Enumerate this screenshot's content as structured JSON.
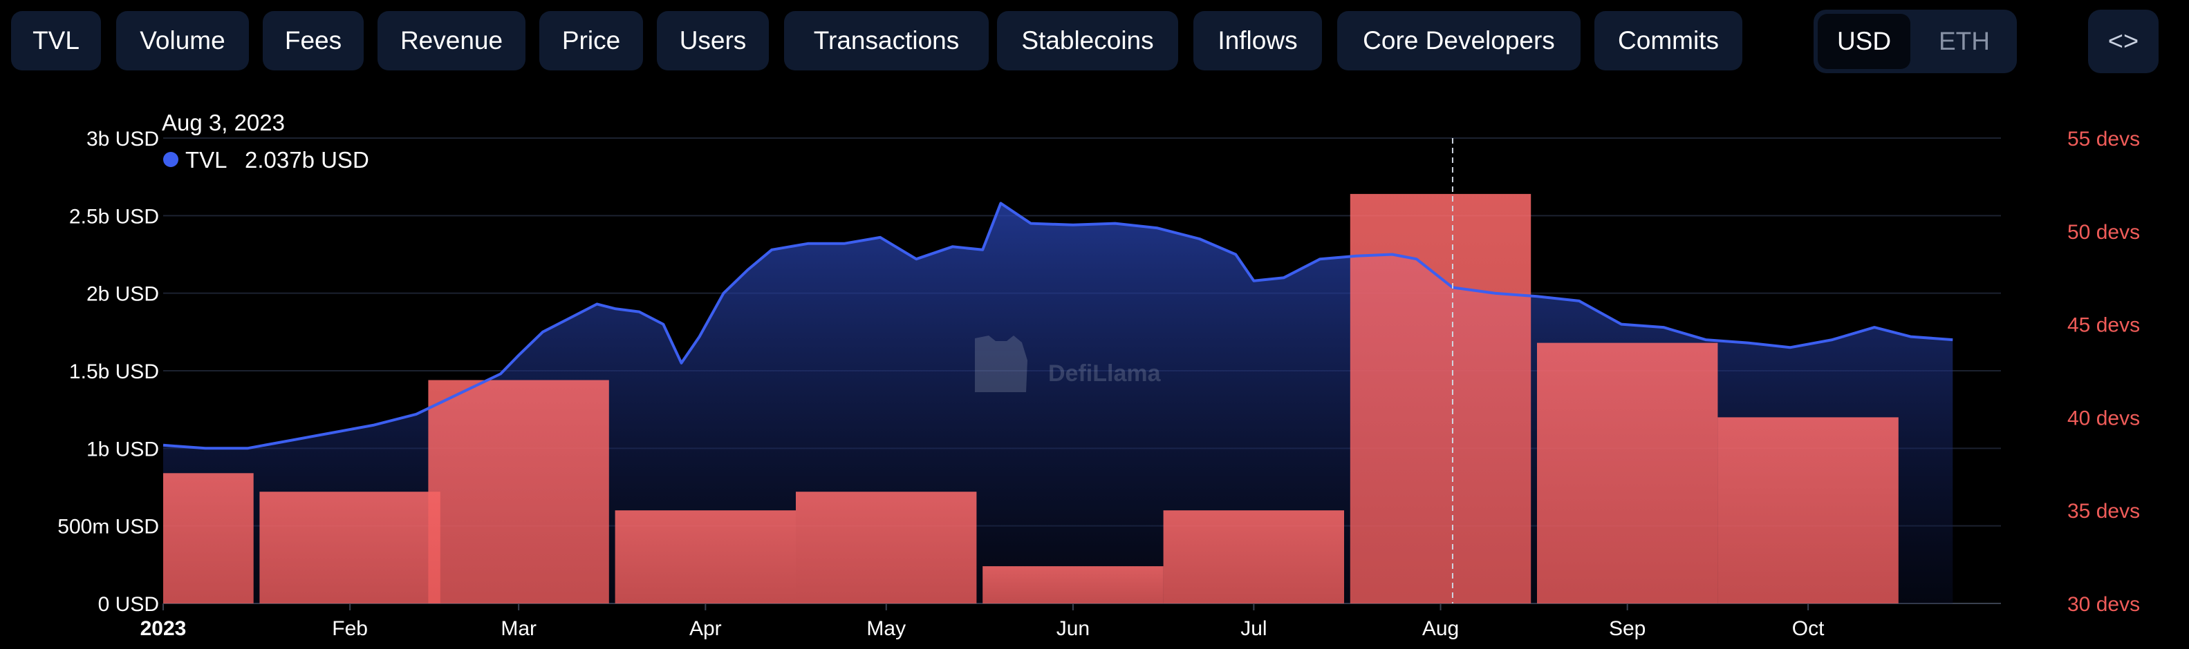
{
  "tabs": [
    {
      "label": "TVL",
      "active": true
    },
    {
      "label": "Volume",
      "active": false
    },
    {
      "label": "Fees",
      "active": false
    },
    {
      "label": "Revenue",
      "active": false
    },
    {
      "label": "Price",
      "active": false
    },
    {
      "label": "Users",
      "active": false
    },
    {
      "label": "Transactions",
      "active": false
    },
    {
      "label": "Stablecoins",
      "active": false
    },
    {
      "label": "Inflows",
      "active": false
    },
    {
      "label": "Core Developers",
      "active": true
    },
    {
      "label": "Commits",
      "active": false
    }
  ],
  "currency_toggle": {
    "options": [
      "USD",
      "ETH"
    ],
    "selected": "USD"
  },
  "embed_button": {
    "label": "<>",
    "icon": "code-icon"
  },
  "watermark": "DefiLlama",
  "colors": {
    "tvl_line": "#3c5ff0",
    "bars": "#ff6b6b",
    "right_axis": "#f05c59",
    "active_tab": "#2050a8",
    "tab_bg": "#0f1a2f"
  },
  "chart_data": {
    "type": "line+bar",
    "tooltip": {
      "date": "Aug 3, 2023",
      "series": "TVL",
      "value": "2.037b USD"
    },
    "x_tick_labels": [
      "2023",
      "Feb",
      "Mar",
      "Apr",
      "May",
      "Jun",
      "Jul",
      "Aug",
      "Sep",
      "Oct"
    ],
    "y_left": {
      "ticks": [
        "0 USD",
        "500m USD",
        "1b USD",
        "1.5b USD",
        "2b USD",
        "2.5b USD",
        "3b USD"
      ],
      "range": [
        0,
        3000000000
      ]
    },
    "y_right": {
      "ticks": [
        "30 devs",
        "35 devs",
        "40 devs",
        "45 devs",
        "50 devs",
        "55 devs"
      ],
      "range": [
        30,
        55
      ]
    },
    "grid": true,
    "series": [
      {
        "name": "TVL",
        "axis": "left",
        "unit": "USD",
        "points": [
          [
            "2023-01-01",
            1020000000.0
          ],
          [
            "2023-01-08",
            1000000000.0
          ],
          [
            "2023-01-15",
            1000000000.0
          ],
          [
            "2023-01-22",
            1050000000.0
          ],
          [
            "2023-01-29",
            1100000000.0
          ],
          [
            "2023-02-05",
            1150000000.0
          ],
          [
            "2023-02-12",
            1220000000.0
          ],
          [
            "2023-02-19",
            1350000000.0
          ],
          [
            "2023-02-26",
            1480000000.0
          ],
          [
            "2023-03-01",
            1600000000.0
          ],
          [
            "2023-03-05",
            1750000000.0
          ],
          [
            "2023-03-10",
            1850000000.0
          ],
          [
            "2023-03-14",
            1930000000.0
          ],
          [
            "2023-03-17",
            1900000000.0
          ],
          [
            "2023-03-21",
            1880000000.0
          ],
          [
            "2023-03-25",
            1800000000.0
          ],
          [
            "2023-03-28",
            1550000000.0
          ],
          [
            "2023-03-31",
            1720000000.0
          ],
          [
            "2023-04-04",
            2000000000.0
          ],
          [
            "2023-04-08",
            2150000000.0
          ],
          [
            "2023-04-12",
            2280000000.0
          ],
          [
            "2023-04-18",
            2320000000.0
          ],
          [
            "2023-04-24",
            2320000000.0
          ],
          [
            "2023-04-30",
            2360000000.0
          ],
          [
            "2023-05-06",
            2220000000.0
          ],
          [
            "2023-05-12",
            2300000000.0
          ],
          [
            "2023-05-17",
            2280000000.0
          ],
          [
            "2023-05-20",
            2580000000.0
          ],
          [
            "2023-05-25",
            2450000000.0
          ],
          [
            "2023-06-01",
            2440000000.0
          ],
          [
            "2023-06-08",
            2450000000.0
          ],
          [
            "2023-06-15",
            2420000000.0
          ],
          [
            "2023-06-22",
            2350000000.0
          ],
          [
            "2023-06-28",
            2250000000.0
          ],
          [
            "2023-07-01",
            2080000000.0
          ],
          [
            "2023-07-06",
            2100000000.0
          ],
          [
            "2023-07-12",
            2220000000.0
          ],
          [
            "2023-07-18",
            2240000000.0
          ],
          [
            "2023-07-24",
            2250000000.0
          ],
          [
            "2023-07-28",
            2220000000.0
          ],
          [
            "2023-08-03",
            2037000000.0
          ],
          [
            "2023-08-10",
            2000000000.0
          ],
          [
            "2023-08-17",
            1980000000.0
          ],
          [
            "2023-08-24",
            1950000000.0
          ],
          [
            "2023-08-31",
            1800000000.0
          ],
          [
            "2023-09-07",
            1780000000.0
          ],
          [
            "2023-09-14",
            1700000000.0
          ],
          [
            "2023-09-21",
            1680000000.0
          ],
          [
            "2023-09-28",
            1650000000.0
          ],
          [
            "2023-10-05",
            1700000000.0
          ],
          [
            "2023-10-12",
            1780000000.0
          ],
          [
            "2023-10-18",
            1720000000.0
          ],
          [
            "2023-10-25",
            1700000000.0
          ]
        ]
      },
      {
        "name": "Core Developers",
        "axis": "right",
        "unit": "devs",
        "type": "bar",
        "points": [
          [
            "2023-01",
            37
          ],
          [
            "2023-02",
            36
          ],
          [
            "2023-03",
            42
          ],
          [
            "2023-04",
            35
          ],
          [
            "2023-05",
            36
          ],
          [
            "2023-06",
            32
          ],
          [
            "2023-07",
            35
          ],
          [
            "2023-08",
            52
          ],
          [
            "2023-09",
            44
          ],
          [
            "2023-10",
            40
          ]
        ]
      }
    ],
    "hover_date": "2023-08-03"
  }
}
